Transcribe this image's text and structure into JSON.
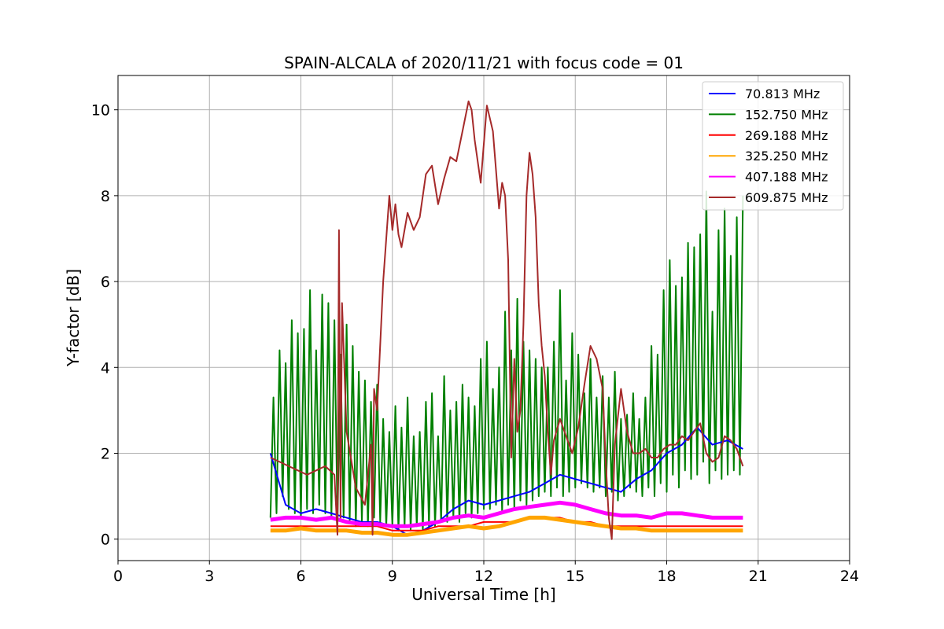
{
  "chart_data": {
    "type": "line",
    "title": "SPAIN-ALCALA of 2020/11/21 with focus code = 01",
    "xlabel": "Universal Time [h]",
    "ylabel": "Y-factor [dB]",
    "xlim": [
      0,
      24
    ],
    "ylim": [
      -0.5,
      10.8
    ],
    "xticks": [
      0,
      3,
      6,
      9,
      12,
      15,
      18,
      21,
      24
    ],
    "yticks": [
      0,
      2,
      4,
      6,
      8,
      10
    ],
    "grid": true,
    "legend_position": "top-right",
    "series": [
      {
        "name": " 70.813 MHz",
        "color": "#0000ff",
        "x": [
          5.0,
          5.5,
          6.0,
          6.5,
          7.0,
          7.5,
          8.0,
          8.5,
          9.0,
          9.5,
          10.0,
          10.5,
          11.0,
          11.5,
          12.0,
          12.5,
          13.0,
          13.5,
          14.0,
          14.5,
          15.0,
          15.5,
          16.0,
          16.5,
          17.0,
          17.5,
          18.0,
          18.5,
          19.0,
          19.5,
          20.0,
          20.5
        ],
        "y": [
          2.0,
          0.8,
          0.6,
          0.7,
          0.6,
          0.5,
          0.4,
          0.4,
          0.3,
          0.1,
          0.2,
          0.4,
          0.7,
          0.9,
          0.8,
          0.9,
          1.0,
          1.1,
          1.3,
          1.5,
          1.4,
          1.3,
          1.2,
          1.1,
          1.4,
          1.6,
          2.0,
          2.2,
          2.6,
          2.2,
          2.3,
          2.1
        ]
      },
      {
        "name": "152.750 MHz",
        "color": "#008000",
        "x": [
          5.0,
          5.1,
          5.2,
          5.3,
          5.4,
          5.5,
          5.6,
          5.7,
          5.8,
          5.9,
          6.0,
          6.1,
          6.2,
          6.3,
          6.4,
          6.5,
          6.6,
          6.7,
          6.8,
          6.9,
          7.0,
          7.1,
          7.2,
          7.3,
          7.4,
          7.5,
          7.6,
          7.7,
          7.8,
          7.9,
          8.0,
          8.1,
          8.2,
          8.3,
          8.4,
          8.5,
          8.6,
          8.7,
          8.8,
          8.9,
          9.0,
          9.1,
          9.2,
          9.3,
          9.4,
          9.5,
          9.6,
          9.7,
          9.8,
          9.9,
          10.0,
          10.1,
          10.2,
          10.3,
          10.4,
          10.5,
          10.6,
          10.7,
          10.8,
          10.9,
          11.0,
          11.1,
          11.2,
          11.3,
          11.4,
          11.5,
          11.6,
          11.7,
          11.8,
          11.9,
          12.0,
          12.1,
          12.2,
          12.3,
          12.4,
          12.5,
          12.6,
          12.7,
          12.8,
          12.9,
          13.0,
          13.1,
          13.2,
          13.3,
          13.4,
          13.5,
          13.6,
          13.7,
          13.8,
          13.9,
          14.0,
          14.1,
          14.2,
          14.3,
          14.4,
          14.5,
          14.6,
          14.7,
          14.8,
          14.9,
          15.0,
          15.1,
          15.2,
          15.3,
          15.4,
          15.5,
          15.6,
          15.7,
          15.8,
          15.9,
          16.0,
          16.1,
          16.2,
          16.3,
          16.4,
          16.5,
          16.6,
          16.7,
          16.8,
          16.9,
          17.0,
          17.1,
          17.2,
          17.3,
          17.4,
          17.5,
          17.6,
          17.7,
          17.8,
          17.9,
          18.0,
          18.1,
          18.2,
          18.3,
          18.4,
          18.5,
          18.6,
          18.7,
          18.8,
          18.9,
          19.0,
          19.1,
          19.2,
          19.3,
          19.4,
          19.5,
          19.6,
          19.7,
          19.8,
          19.9,
          20.0,
          20.1,
          20.2,
          20.3,
          20.4,
          20.5
        ],
        "y": [
          0.5,
          3.3,
          0.6,
          4.4,
          1.0,
          4.1,
          0.7,
          5.1,
          0.6,
          4.8,
          0.5,
          4.9,
          0.7,
          5.8,
          0.6,
          4.4,
          0.8,
          5.7,
          0.6,
          5.5,
          0.5,
          5.1,
          0.4,
          4.3,
          0.5,
          5.0,
          0.4,
          4.5,
          0.3,
          3.9,
          0.4,
          3.7,
          0.3,
          3.2,
          0.5,
          3.6,
          0.4,
          2.8,
          0.3,
          2.5,
          0.3,
          3.1,
          0.2,
          2.6,
          0.3,
          3.3,
          0.2,
          2.4,
          0.3,
          2.5,
          0.2,
          3.2,
          0.3,
          3.4,
          0.3,
          2.4,
          0.4,
          3.8,
          0.4,
          3.0,
          0.5,
          3.2,
          0.4,
          3.6,
          0.6,
          3.3,
          0.5,
          3.1,
          0.6,
          4.2,
          0.7,
          4.6,
          0.7,
          3.5,
          0.8,
          4.0,
          0.6,
          5.3,
          0.8,
          4.4,
          0.7,
          5.6,
          0.9,
          4.6,
          0.8,
          4.4,
          0.9,
          4.2,
          1.0,
          4.0,
          1.1,
          4.0,
          1.0,
          4.6,
          1.2,
          5.8,
          1.0,
          3.7,
          1.1,
          4.8,
          1.2,
          4.3,
          1.3,
          3.4,
          1.2,
          4.2,
          1.1,
          3.3,
          1.2,
          3.8,
          1.0,
          3.3,
          1.1,
          3.9,
          0.9,
          2.8,
          1.0,
          2.9,
          1.2,
          3.4,
          1.1,
          2.8,
          1.0,
          3.3,
          1.2,
          4.5,
          1.0,
          4.3,
          1.3,
          5.8,
          1.1,
          6.5,
          1.5,
          5.9,
          1.2,
          6.1,
          1.6,
          6.9,
          1.4,
          6.8,
          1.5,
          7.1,
          1.8,
          8.1,
          1.3,
          5.3,
          1.6,
          7.2,
          1.4,
          7.7,
          1.5,
          6.6,
          1.6,
          7.5,
          1.5,
          8.0
        ]
      },
      {
        "name": "269.188 MHz",
        "color": "#ff0000",
        "x": [
          5.0,
          5.5,
          6.0,
          6.5,
          7.0,
          7.5,
          8.0,
          8.5,
          9.0,
          9.5,
          10.0,
          10.5,
          11.0,
          11.5,
          12.0,
          12.5,
          13.0,
          13.5,
          14.0,
          14.5,
          15.0,
          15.5,
          16.0,
          16.5,
          17.0,
          17.5,
          18.0,
          18.5,
          19.0,
          19.5,
          20.0,
          20.5
        ],
        "y": [
          0.3,
          0.3,
          0.3,
          0.3,
          0.3,
          0.3,
          0.3,
          0.3,
          0.2,
          0.2,
          0.2,
          0.3,
          0.3,
          0.3,
          0.4,
          0.4,
          0.4,
          0.5,
          0.5,
          0.5,
          0.4,
          0.4,
          0.3,
          0.3,
          0.3,
          0.3,
          0.3,
          0.3,
          0.3,
          0.3,
          0.3,
          0.3
        ]
      },
      {
        "name": "325.250 MHz",
        "color": "#ffa500",
        "x": [
          5.0,
          5.5,
          6.0,
          6.5,
          7.0,
          7.5,
          8.0,
          8.5,
          9.0,
          9.5,
          10.0,
          10.5,
          11.0,
          11.5,
          12.0,
          12.5,
          13.0,
          13.5,
          14.0,
          14.5,
          15.0,
          15.5,
          16.0,
          16.5,
          17.0,
          17.5,
          18.0,
          18.5,
          19.0,
          19.5,
          20.0,
          20.5
        ],
        "y": [
          0.2,
          0.2,
          0.25,
          0.2,
          0.2,
          0.2,
          0.15,
          0.15,
          0.1,
          0.1,
          0.15,
          0.2,
          0.25,
          0.3,
          0.25,
          0.3,
          0.4,
          0.5,
          0.5,
          0.45,
          0.4,
          0.35,
          0.3,
          0.25,
          0.25,
          0.2,
          0.2,
          0.2,
          0.2,
          0.2,
          0.2,
          0.2
        ]
      },
      {
        "name": "407.188 MHz",
        "color": "#ff00ff",
        "x": [
          5.0,
          5.5,
          6.0,
          6.5,
          7.0,
          7.5,
          8.0,
          8.5,
          9.0,
          9.5,
          10.0,
          10.5,
          11.0,
          11.5,
          12.0,
          12.5,
          13.0,
          13.5,
          14.0,
          14.5,
          15.0,
          15.5,
          16.0,
          16.5,
          17.0,
          17.5,
          18.0,
          18.5,
          19.0,
          19.5,
          20.0,
          20.5
        ],
        "y": [
          0.45,
          0.5,
          0.5,
          0.45,
          0.5,
          0.4,
          0.35,
          0.35,
          0.3,
          0.3,
          0.35,
          0.4,
          0.5,
          0.55,
          0.5,
          0.6,
          0.7,
          0.75,
          0.8,
          0.85,
          0.8,
          0.7,
          0.6,
          0.55,
          0.55,
          0.5,
          0.6,
          0.6,
          0.55,
          0.5,
          0.5,
          0.5
        ]
      },
      {
        "name": "609.875 MHz",
        "color": "#a52a2a",
        "x": [
          5.0,
          5.3,
          5.6,
          5.9,
          6.2,
          6.5,
          6.8,
          7.1,
          7.2,
          7.25,
          7.3,
          7.35,
          7.5,
          7.8,
          8.1,
          8.3,
          8.35,
          8.4,
          8.5,
          8.7,
          8.8,
          8.9,
          9.0,
          9.1,
          9.2,
          9.3,
          9.5,
          9.7,
          9.9,
          10.1,
          10.3,
          10.5,
          10.7,
          10.9,
          11.1,
          11.3,
          11.5,
          11.6,
          11.7,
          11.9,
          12.1,
          12.3,
          12.5,
          12.6,
          12.7,
          12.8,
          12.9,
          13.0,
          13.1,
          13.2,
          13.3,
          13.4,
          13.5,
          13.6,
          13.7,
          13.8,
          13.9,
          14.0,
          14.1,
          14.2,
          14.3,
          14.5,
          14.7,
          14.9,
          15.1,
          15.3,
          15.5,
          15.7,
          15.9,
          16.0,
          16.1,
          16.2,
          16.3,
          16.5,
          16.7,
          16.9,
          17.1,
          17.3,
          17.5,
          17.7,
          17.9,
          18.1,
          18.3,
          18.5,
          18.7,
          18.9,
          19.1,
          19.3,
          19.5,
          19.7,
          19.9,
          20.1,
          20.3,
          20.5
        ],
        "y": [
          1.9,
          1.8,
          1.7,
          1.6,
          1.5,
          1.6,
          1.7,
          1.5,
          0.1,
          7.2,
          0.5,
          5.5,
          2.5,
          1.2,
          0.8,
          2.2,
          0.1,
          3.5,
          3.0,
          6.0,
          7.0,
          8.0,
          7.2,
          7.8,
          7.1,
          6.8,
          7.6,
          7.2,
          7.5,
          8.5,
          8.7,
          7.8,
          8.4,
          8.9,
          8.8,
          9.5,
          10.2,
          10.0,
          9.3,
          8.3,
          10.1,
          9.5,
          7.7,
          8.3,
          8.0,
          6.5,
          1.9,
          4.2,
          2.5,
          3.0,
          5.0,
          8.0,
          9.0,
          8.5,
          7.5,
          5.5,
          4.5,
          3.8,
          2.5,
          1.5,
          2.3,
          2.8,
          2.4,
          2.0,
          2.6,
          3.6,
          4.5,
          4.2,
          3.5,
          1.8,
          0.5,
          0.0,
          2.2,
          3.5,
          2.5,
          2.0,
          2.0,
          2.1,
          1.9,
          1.9,
          2.1,
          2.2,
          2.2,
          2.4,
          2.3,
          2.5,
          2.7,
          2.0,
          1.8,
          1.9,
          2.4,
          2.3,
          2.1,
          1.7
        ]
      }
    ]
  }
}
